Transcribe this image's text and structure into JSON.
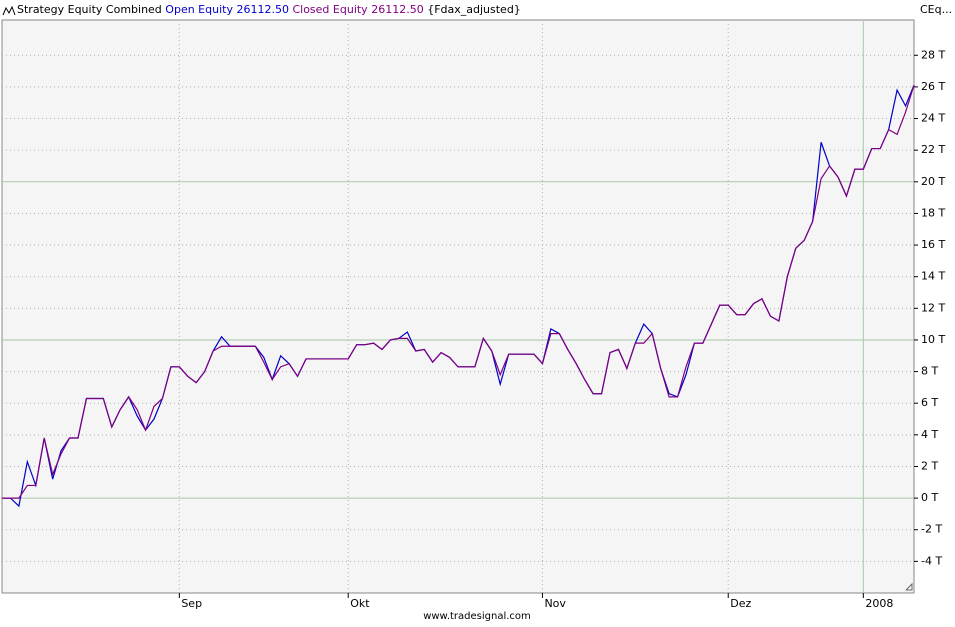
{
  "chart_data": {
    "type": "line",
    "title": "Strategy Equity Combined",
    "subtitle": "{Fdax_adjusted}",
    "y_axis_label": "CEq...",
    "footer": "www.tradesignal.com",
    "x": [
      0,
      1,
      2,
      3,
      4,
      5,
      6,
      7,
      8,
      9,
      10,
      11,
      12,
      13,
      14,
      15,
      16,
      17,
      18,
      19,
      20,
      21,
      22,
      23,
      24,
      25,
      26,
      27,
      28,
      29,
      30,
      31,
      32,
      33,
      34,
      35,
      36,
      37,
      38,
      39,
      40,
      41,
      42,
      43,
      44,
      45,
      46,
      47,
      48,
      49,
      50,
      51,
      52,
      53,
      54,
      55,
      56,
      57,
      58,
      59,
      60,
      61,
      62,
      63,
      64,
      65,
      66,
      67,
      68,
      69,
      70,
      71,
      72,
      73,
      74,
      75,
      76,
      77,
      78,
      79,
      80,
      81,
      82,
      83,
      84,
      85,
      86,
      87,
      88,
      89,
      90,
      91,
      92,
      93,
      94,
      95,
      96,
      97,
      98,
      99,
      100,
      101,
      102,
      103,
      104,
      105,
      106,
      107,
      108
    ],
    "series": [
      {
        "name": "Open Equity",
        "last_label": "26112.50",
        "color": "#0000cc",
        "values": [
          0,
          0,
          -500,
          2300,
          800,
          3800,
          1200,
          3000,
          3800,
          3800,
          6300,
          6300,
          6300,
          4500,
          5600,
          6400,
          5200,
          4300,
          5000,
          6300,
          8300,
          8300,
          7700,
          7300,
          8000,
          9300,
          10200,
          9600,
          9600,
          9600,
          9600,
          8900,
          7500,
          9000,
          8500,
          7700,
          8800,
          8800,
          8800,
          8800,
          8800,
          8800,
          9700,
          9700,
          9800,
          9400,
          10000,
          10100,
          10500,
          9300,
          9400,
          8600,
          9200,
          8900,
          8300,
          8300,
          8300,
          10100,
          9300,
          7200,
          9100,
          9100,
          9100,
          9100,
          8500,
          10700,
          10400,
          9400,
          8500,
          7500,
          6600,
          6600,
          9200,
          9400,
          8200,
          9800,
          11000,
          10400,
          8200,
          6600,
          6400,
          7800,
          9800,
          9800,
          11000,
          12200,
          12200,
          11600,
          11600,
          12300,
          12600,
          11500,
          11200,
          14000,
          15800,
          16300,
          17500,
          22500,
          21000,
          20300,
          19100,
          20800,
          20800,
          22100,
          22100,
          23300,
          25800,
          24800,
          26112.5
        ]
      },
      {
        "name": "Closed Equity",
        "last_label": "26112.50",
        "color": "#800080",
        "values": [
          0,
          0,
          0,
          800,
          800,
          3800,
          1500,
          2800,
          3800,
          3800,
          6300,
          6300,
          6300,
          4500,
          5600,
          6400,
          5600,
          4300,
          5800,
          6300,
          8300,
          8300,
          7700,
          7300,
          8000,
          9300,
          9600,
          9600,
          9600,
          9600,
          9600,
          8600,
          7500,
          8300,
          8500,
          7700,
          8800,
          8800,
          8800,
          8800,
          8800,
          8800,
          9700,
          9700,
          9800,
          9400,
          10000,
          10100,
          10100,
          9300,
          9400,
          8600,
          9200,
          8900,
          8300,
          8300,
          8300,
          10100,
          9300,
          7800,
          9100,
          9100,
          9100,
          9100,
          8500,
          10400,
          10400,
          9400,
          8500,
          7500,
          6600,
          6600,
          9200,
          9400,
          8200,
          9800,
          9800,
          10400,
          8200,
          6400,
          6400,
          8300,
          9800,
          9800,
          11000,
          12200,
          12200,
          11600,
          11600,
          12300,
          12600,
          11500,
          11200,
          14000,
          15800,
          16300,
          17500,
          20200,
          21000,
          20300,
          19100,
          20800,
          20800,
          22100,
          22100,
          23300,
          23000,
          24400,
          26112.5
        ]
      }
    ],
    "xlim": [
      0,
      108
    ],
    "xticks": [
      {
        "value": 21,
        "label": "Sep"
      },
      {
        "value": 41,
        "label": "Okt"
      },
      {
        "value": 64,
        "label": "Nov"
      },
      {
        "value": 86,
        "label": "Dez"
      },
      {
        "value": 102,
        "label": "2008"
      }
    ],
    "ylim": [
      -6000,
      30230
    ],
    "yticks": [
      {
        "value": -4000,
        "label": "-4 T"
      },
      {
        "value": -2000,
        "label": "-2 T"
      },
      {
        "value": 0,
        "label": "0 T"
      },
      {
        "value": 2000,
        "label": "2 T"
      },
      {
        "value": 4000,
        "label": "4 T"
      },
      {
        "value": 6000,
        "label": "6 T"
      },
      {
        "value": 8000,
        "label": "8 T"
      },
      {
        "value": 10000,
        "label": "10 T"
      },
      {
        "value": 12000,
        "label": "12 T"
      },
      {
        "value": 14000,
        "label": "14 T"
      },
      {
        "value": 16000,
        "label": "16 T"
      },
      {
        "value": 18000,
        "label": "18 T"
      },
      {
        "value": 20000,
        "label": "20 T"
      },
      {
        "value": 22000,
        "label": "22 T"
      },
      {
        "value": 24000,
        "label": "24 T"
      },
      {
        "value": 26000,
        "label": "26 T"
      },
      {
        "value": 28000,
        "label": "28 T"
      }
    ],
    "grid": true
  }
}
